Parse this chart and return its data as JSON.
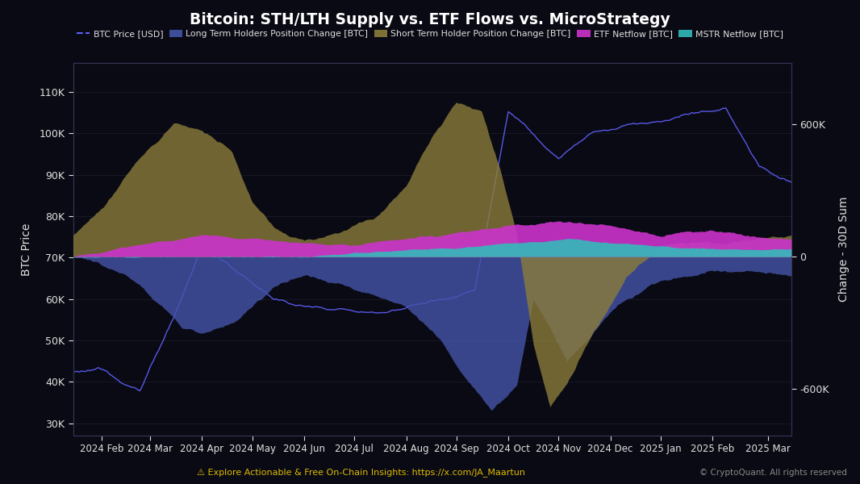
{
  "title": "Bitcoin: STH/LTH Supply vs. ETF Flows vs. MicroStrategy",
  "background_color": "#0a0a14",
  "plot_bg_color": "#0a0a14",
  "text_color": "#e0e0e0",
  "grid_color": "#1e1e2e",
  "left_ylabel": "BTC Price",
  "right_ylabel": "Change - 30D Sum",
  "btc_price_color": "#6060ff",
  "btc_price_color2": "#a0a0ff",
  "lth_color": "#4455aa",
  "lth_alpha": 0.8,
  "sth_color": "#8b7d3a",
  "sth_alpha": 0.8,
  "etf_color": "#cc33cc",
  "etf_alpha": 0.9,
  "mstr_color": "#33bbbb",
  "mstr_alpha": 0.9,
  "ylim_left": [
    27000,
    117000
  ],
  "ylim_right": [
    -810000,
    877000
  ],
  "zero_line_btc": 57000,
  "subtitle": "Explore Actionable & Free On-Chain Insights: https://x.com/JA_Maartun",
  "watermark": "© CryptoQuant. All rights reserved",
  "yticks_left": [
    30000,
    40000,
    50000,
    60000,
    70000,
    80000,
    90000,
    100000,
    110000
  ],
  "ytick_labels_left": [
    "30K",
    "40K",
    "50K",
    "60K",
    "70K",
    "80K",
    "90K",
    "100K",
    "110K"
  ],
  "yticks_right": [
    -600000,
    0,
    600000
  ],
  "ytick_labels_right": [
    "-600K",
    "0",
    "600K"
  ],
  "n_points": 430
}
